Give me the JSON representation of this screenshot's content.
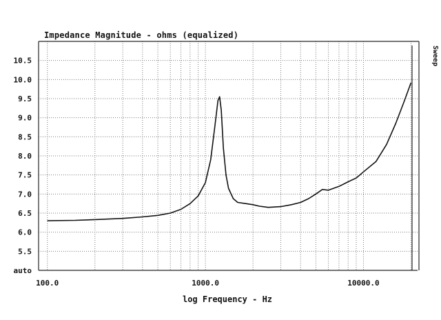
{
  "chart_data": {
    "type": "line",
    "title": "Impedance Magnitude - ohms (equalized)",
    "xlabel": "log Frequency - Hz",
    "ylabel": "",
    "x_scale": "log",
    "xlim": [
      88,
      22000
    ],
    "ylim": [
      5.0,
      11.0
    ],
    "x_ticks": [
      {
        "value": 100,
        "label": "100.0"
      },
      {
        "value": 1000,
        "label": "1000.0"
      },
      {
        "value": 10000,
        "label": "10000.0"
      }
    ],
    "y_ticks": [
      {
        "value": 5.0,
        "label": "auto"
      },
      {
        "value": 5.5,
        "label": "5.5"
      },
      {
        "value": 6.0,
        "label": "6.0"
      },
      {
        "value": 6.5,
        "label": "6.5"
      },
      {
        "value": 7.0,
        "label": "7.0"
      },
      {
        "value": 7.5,
        "label": "7.5"
      },
      {
        "value": 8.0,
        "label": "8.0"
      },
      {
        "value": 8.5,
        "label": "8.5"
      },
      {
        "value": 9.0,
        "label": "9.0"
      },
      {
        "value": 9.5,
        "label": "9.5"
      },
      {
        "value": 10.0,
        "label": "10.0"
      },
      {
        "value": 10.5,
        "label": "10.5"
      }
    ],
    "side_label": "Sweep",
    "grid": true,
    "series": [
      {
        "x": [
          100,
          150,
          200,
          300,
          400,
          500,
          600,
          700,
          800,
          900,
          1000,
          1080,
          1150,
          1200,
          1230,
          1260,
          1300,
          1350,
          1400,
          1500,
          1600,
          1800,
          2000,
          2200,
          2500,
          3000,
          3500,
          4000,
          4500,
          5000,
          5500,
          6000,
          7000,
          8000,
          9000,
          10000,
          12000,
          14000,
          16000,
          18000,
          20000
        ],
        "y": [
          6.3,
          6.31,
          6.33,
          6.36,
          6.4,
          6.44,
          6.5,
          6.6,
          6.75,
          6.95,
          7.3,
          7.9,
          8.8,
          9.45,
          9.55,
          9.2,
          8.2,
          7.5,
          7.15,
          6.88,
          6.78,
          6.75,
          6.72,
          6.68,
          6.65,
          6.67,
          6.72,
          6.78,
          6.88,
          7.0,
          7.12,
          7.1,
          7.2,
          7.32,
          7.42,
          7.58,
          7.85,
          8.3,
          8.85,
          9.4,
          9.92
        ]
      }
    ]
  }
}
